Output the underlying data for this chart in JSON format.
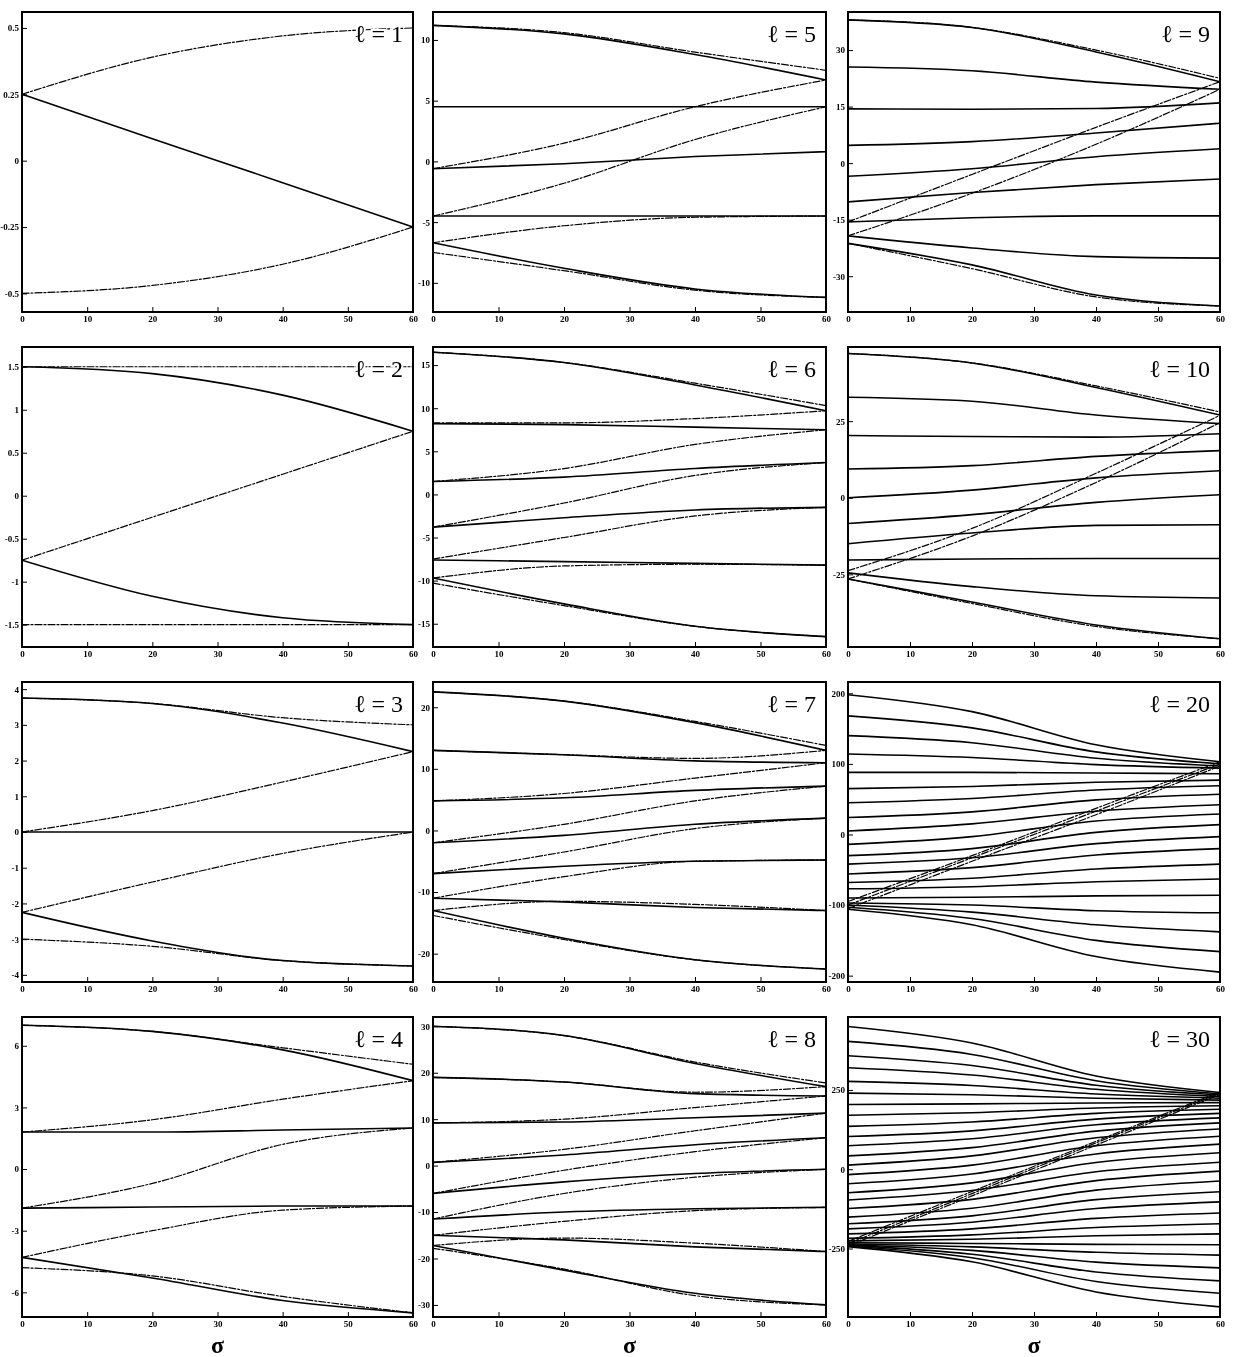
{
  "chart_data": [
    {
      "type": "line",
      "annotations": [
        "ℓ = 1"
      ],
      "x": [
        0,
        20,
        40,
        60
      ],
      "xlim": [
        0,
        60
      ],
      "xticks": [
        0,
        10,
        20,
        30,
        40,
        50,
        60
      ],
      "ylim": [
        -0.57,
        0.56
      ],
      "yticks": [
        -0.5,
        -0.25,
        0,
        0.25,
        0.5
      ],
      "series": [
        {
          "color": "#000000",
          "line_style": "solid",
          "values": [
            0.25,
            0.083,
            -0.083,
            -0.25
          ]
        },
        {
          "color": "#000000",
          "line_style": "dashed",
          "values": [
            0.25,
            0.39,
            0.47,
            0.5
          ]
        },
        {
          "color": "#000000",
          "line_style": "dashed",
          "values": [
            -0.5,
            -0.47,
            -0.39,
            -0.25
          ]
        }
      ]
    },
    {
      "type": "line",
      "annotations": [
        "ℓ = 5"
      ],
      "x": [
        0,
        20,
        40,
        60
      ],
      "xlim": [
        0,
        60
      ],
      "xticks": [
        0,
        10,
        20,
        30,
        40,
        50,
        60
      ],
      "ylim": [
        -12.4,
        12.3
      ],
      "yticks": [
        -10,
        -5,
        0,
        5,
        10
      ],
      "series": [
        {
          "color": "#000000",
          "line_style": "solid",
          "values": [
            11.2,
            10.5,
            8.8,
            6.7
          ]
        },
        {
          "color": "#000000",
          "line_style": "dashed",
          "values": [
            11.2,
            10.6,
            9.0,
            7.5
          ]
        },
        {
          "color": "#000000",
          "line_style": "solid",
          "values": [
            4.5,
            4.5,
            4.5,
            4.5
          ]
        },
        {
          "color": "#000000",
          "line_style": "dashed",
          "values": [
            -0.6,
            1.5,
            4.5,
            6.7
          ]
        },
        {
          "color": "#000000",
          "line_style": "solid",
          "values": [
            -0.6,
            -0.2,
            0.4,
            0.8
          ]
        },
        {
          "color": "#000000",
          "line_style": "dashed",
          "values": [
            -4.5,
            -1.8,
            1.8,
            4.5
          ]
        },
        {
          "color": "#000000",
          "line_style": "solid",
          "values": [
            -4.5,
            -4.5,
            -4.5,
            -4.5
          ]
        },
        {
          "color": "#000000",
          "line_style": "dashed",
          "values": [
            -6.7,
            -5.3,
            -4.6,
            -4.5
          ]
        },
        {
          "color": "#000000",
          "line_style": "dashed",
          "values": [
            -7.5,
            -9.0,
            -10.6,
            -11.2
          ]
        },
        {
          "color": "#000000",
          "line_style": "solid",
          "values": [
            -6.7,
            -8.8,
            -10.5,
            -11.2
          ]
        }
      ]
    },
    {
      "type": "line",
      "annotations": [
        "ℓ = 9"
      ],
      "x": [
        0,
        20,
        40,
        60
      ],
      "xlim": [
        0,
        60
      ],
      "xticks": [
        0,
        10,
        20,
        30,
        40,
        50,
        60
      ],
      "ylim": [
        -39.5,
        40.1
      ],
      "yticks": [
        -30,
        -15,
        0,
        15,
        30
      ],
      "series": [
        {
          "color": "#000000",
          "line_style": "solid",
          "values": [
            38,
            36,
            29.5,
            21.6
          ]
        },
        {
          "color": "#000000",
          "line_style": "dashed",
          "values": [
            38,
            36,
            30,
            22.5
          ]
        },
        {
          "color": "#000000",
          "line_style": "solid",
          "values": [
            25.5,
            24.5,
            21.5,
            19.6
          ]
        },
        {
          "color": "#000000",
          "line_style": "solid",
          "values": [
            14.4,
            14.3,
            14.5,
            16
          ]
        },
        {
          "color": "#000000",
          "line_style": "solid",
          "values": [
            4.7,
            5.7,
            8,
            10.6
          ]
        },
        {
          "color": "#000000",
          "line_style": "solid",
          "values": [
            -3.5,
            -1.5,
            1.7,
            3.8
          ]
        },
        {
          "color": "#000000",
          "line_style": "solid",
          "values": [
            -10.3,
            -7.8,
            -5.7,
            -4.2
          ]
        },
        {
          "color": "#000000",
          "line_style": "solid",
          "values": [
            -15.6,
            -14.5,
            -14,
            -14
          ]
        },
        {
          "color": "#000000",
          "line_style": "dashed",
          "values": [
            -15.6,
            -3,
            9.5,
            21.6
          ]
        },
        {
          "color": "#000000",
          "line_style": "dashed",
          "values": [
            -19.3,
            -8,
            5,
            19.6
          ]
        },
        {
          "color": "#000000",
          "line_style": "solid",
          "values": [
            -19.3,
            -22.5,
            -24.8,
            -25.2
          ]
        },
        {
          "color": "#000000",
          "line_style": "solid",
          "values": [
            -21.3,
            -27,
            -35,
            -37.9
          ]
        },
        {
          "color": "#000000",
          "line_style": "dashed",
          "values": [
            -21.3,
            -28,
            -35.5,
            -37.9
          ]
        }
      ]
    },
    {
      "type": "line",
      "annotations": [
        "ℓ = 2"
      ],
      "x": [
        0,
        20,
        40,
        60
      ],
      "xlim": [
        0,
        60
      ],
      "xticks": [
        0,
        10,
        20,
        30,
        40,
        50,
        60
      ],
      "ylim": [
        -1.76,
        1.73
      ],
      "yticks": [
        -1.5,
        -1,
        -0.5,
        0,
        0.5,
        1,
        1.5
      ],
      "series": [
        {
          "color": "#000000",
          "line_style": "dashed",
          "values": [
            1.5,
            1.5,
            1.5,
            1.5
          ]
        },
        {
          "color": "#000000",
          "line_style": "solid",
          "values": [
            1.5,
            1.42,
            1.17,
            0.75
          ]
        },
        {
          "color": "#000000",
          "line_style": "dashed",
          "values": [
            -0.75,
            -0.25,
            0.25,
            0.75
          ]
        },
        {
          "color": "#000000",
          "line_style": "solid",
          "values": [
            -0.75,
            -1.17,
            -1.42,
            -1.5
          ]
        },
        {
          "color": "#000000",
          "line_style": "dashed",
          "values": [
            -1.5,
            -1.5,
            -1.5,
            -1.5
          ]
        }
      ]
    },
    {
      "type": "line",
      "annotations": [
        "ℓ = 6"
      ],
      "x": [
        0,
        20,
        40,
        60
      ],
      "xlim": [
        0,
        60
      ],
      "xticks": [
        0,
        10,
        20,
        30,
        40,
        50,
        60
      ],
      "ylim": [
        -17.7,
        17.1
      ],
      "yticks": [
        -15,
        -10,
        -5,
        0,
        5,
        10,
        15
      ],
      "series": [
        {
          "color": "#000000",
          "line_style": "solid",
          "values": [
            16.5,
            15.3,
            12.7,
            9.7
          ]
        },
        {
          "color": "#000000",
          "line_style": "dashed",
          "values": [
            16.5,
            15.3,
            12.9,
            10.3
          ]
        },
        {
          "color": "#000000",
          "line_style": "dashed",
          "values": [
            8.3,
            8.3,
            8.8,
            9.7
          ]
        },
        {
          "color": "#000000",
          "line_style": "solid",
          "values": [
            8.2,
            8.1,
            7.8,
            7.5
          ]
        },
        {
          "color": "#000000",
          "line_style": "dashed",
          "values": [
            1.5,
            3.0,
            5.8,
            7.5
          ]
        },
        {
          "color": "#000000",
          "line_style": "solid",
          "values": [
            1.5,
            2.0,
            3.0,
            3.7
          ]
        },
        {
          "color": "#000000",
          "line_style": "dashed",
          "values": [
            -3.8,
            -1.0,
            2.2,
            3.7
          ]
        },
        {
          "color": "#000000",
          "line_style": "solid",
          "values": [
            -3.8,
            -2.7,
            -1.8,
            -1.5
          ]
        },
        {
          "color": "#000000",
          "line_style": "dashed",
          "values": [
            -7.5,
            -5,
            -2.5,
            -1.5
          ]
        },
        {
          "color": "#000000",
          "line_style": "solid",
          "values": [
            -7.6,
            -7.8,
            -8.0,
            -8.2
          ]
        },
        {
          "color": "#000000",
          "line_style": "dashed",
          "values": [
            -9.7,
            -8.3,
            -8.1,
            -8.2
          ]
        },
        {
          "color": "#000000",
          "line_style": "dashed",
          "values": [
            -10.3,
            -12.9,
            -15.3,
            -16.5
          ]
        },
        {
          "color": "#000000",
          "line_style": "solid",
          "values": [
            -9.7,
            -12.7,
            -15.3,
            -16.5
          ]
        }
      ]
    },
    {
      "type": "line",
      "annotations": [
        "ℓ = 10"
      ],
      "x": [
        0,
        20,
        40,
        60
      ],
      "xlim": [
        0,
        60
      ],
      "xticks": [
        0,
        10,
        20,
        30,
        40,
        50,
        60
      ],
      "ylim": [
        -48.7,
        49.2
      ],
      "yticks": [
        -25,
        0,
        25
      ],
      "series": [
        {
          "color": "#000000",
          "line_style": "solid",
          "values": [
            47.1,
            44,
            36,
            27
          ]
        },
        {
          "color": "#000000",
          "line_style": "dashed",
          "values": [
            47.1,
            44,
            36.5,
            28
          ]
        },
        {
          "color": "#000000",
          "line_style": "solid",
          "values": [
            32.8,
            31.5,
            27,
            24.2
          ]
        },
        {
          "color": "#000000",
          "line_style": "solid",
          "values": [
            20.3,
            20,
            19.8,
            20.9
          ]
        },
        {
          "color": "#000000",
          "line_style": "solid",
          "values": [
            9.4,
            10.5,
            13.5,
            15.4
          ]
        },
        {
          "color": "#000000",
          "line_style": "solid",
          "values": [
            0,
            2.5,
            6.5,
            8.8
          ]
        },
        {
          "color": "#000000",
          "line_style": "solid",
          "values": [
            -8.4,
            -5.5,
            -1.5,
            1
          ]
        },
        {
          "color": "#000000",
          "line_style": "solid",
          "values": [
            -15,
            -11.5,
            -9,
            -8.8
          ]
        },
        {
          "color": "#000000",
          "line_style": "solid",
          "values": [
            -20.3,
            -20,
            -19.8,
            -19.8
          ]
        },
        {
          "color": "#000000",
          "line_style": "dashed",
          "values": [
            -23.8,
            -10,
            8,
            26.9
          ]
        },
        {
          "color": "#000000",
          "line_style": "dashed",
          "values": [
            -26.5,
            -12.5,
            5,
            24.5
          ]
        },
        {
          "color": "#000000",
          "line_style": "solid",
          "values": [
            -24.5,
            -29,
            -32,
            -32.7
          ]
        },
        {
          "color": "#000000",
          "line_style": "solid",
          "values": [
            -26.5,
            -34,
            -41.5,
            -46
          ]
        },
        {
          "color": "#000000",
          "line_style": "dashed",
          "values": [
            -26.5,
            -34.5,
            -42,
            -46
          ]
        }
      ]
    },
    {
      "type": "line",
      "annotations": [
        "ℓ = 3"
      ],
      "x": [
        0,
        20,
        40,
        60
      ],
      "xlim": [
        0,
        60
      ],
      "xticks": [
        0,
        10,
        20,
        30,
        40,
        50,
        60
      ],
      "ylim": [
        -4.2,
        4.2
      ],
      "yticks": [
        -4,
        -3,
        -2,
        -1,
        0,
        1,
        2,
        3,
        4
      ],
      "series": [
        {
          "color": "#000000",
          "line_style": "dashed",
          "values": [
            3.75,
            3.6,
            3.2,
            3.0
          ]
        },
        {
          "color": "#000000",
          "line_style": "solid",
          "values": [
            3.75,
            3.6,
            3.05,
            2.25
          ]
        },
        {
          "color": "#000000",
          "line_style": "dashed",
          "values": [
            0,
            0.6,
            1.4,
            2.25
          ]
        },
        {
          "color": "#000000",
          "line_style": "solid",
          "values": [
            0,
            0,
            0,
            0
          ]
        },
        {
          "color": "#000000",
          "line_style": "dashed",
          "values": [
            -2.25,
            -1.4,
            -0.6,
            0
          ]
        },
        {
          "color": "#000000",
          "line_style": "dashed",
          "values": [
            -3,
            -3.2,
            -3.6,
            -3.75
          ]
        },
        {
          "color": "#000000",
          "line_style": "solid",
          "values": [
            -2.25,
            -3.05,
            -3.6,
            -3.75
          ]
        }
      ]
    },
    {
      "type": "line",
      "annotations": [
        "ℓ = 7"
      ],
      "x": [
        0,
        20,
        40,
        60
      ],
      "xlim": [
        0,
        60
      ],
      "xticks": [
        0,
        10,
        20,
        30,
        40,
        50,
        60
      ],
      "ylim": [
        -24.6,
        24.1
      ],
      "yticks": [
        -20,
        -10,
        0,
        10,
        20
      ],
      "series": [
        {
          "color": "#000000",
          "line_style": "solid",
          "values": [
            22.5,
            21,
            17.5,
            13
          ]
        },
        {
          "color": "#000000",
          "line_style": "dashed",
          "values": [
            22.5,
            21,
            17.7,
            13.8
          ]
        },
        {
          "color": "#000000",
          "line_style": "solid",
          "values": [
            13,
            12.3,
            11.3,
            11
          ]
        },
        {
          "color": "#000000",
          "line_style": "dashed",
          "values": [
            13,
            12.3,
            11.7,
            13
          ]
        },
        {
          "color": "#000000",
          "line_style": "solid",
          "values": [
            4.8,
            5.3,
            6.5,
            7.2
          ]
        },
        {
          "color": "#000000",
          "line_style": "dashed",
          "values": [
            4.8,
            6.0,
            8.5,
            11
          ]
        },
        {
          "color": "#000000",
          "line_style": "solid",
          "values": [
            -2,
            -0.8,
            1,
            2
          ]
        },
        {
          "color": "#000000",
          "line_style": "dashed",
          "values": [
            -2,
            1,
            4.8,
            7.2
          ]
        },
        {
          "color": "#000000",
          "line_style": "solid",
          "values": [
            -7,
            -5.8,
            -5,
            -4.8
          ]
        },
        {
          "color": "#000000",
          "line_style": "dashed",
          "values": [
            -7,
            -3.5,
            0.3,
            2
          ]
        },
        {
          "color": "#000000",
          "line_style": "solid",
          "values": [
            -11,
            -11.6,
            -12.5,
            -13
          ]
        },
        {
          "color": "#000000",
          "line_style": "dashed",
          "values": [
            -11,
            -7.5,
            -5,
            -4.8
          ]
        },
        {
          "color": "#000000",
          "line_style": "dashed",
          "values": [
            -13,
            -11.5,
            -12,
            -13
          ]
        },
        {
          "color": "#000000",
          "line_style": "dashed",
          "values": [
            -13.8,
            -17.7,
            -21,
            -22.5
          ]
        },
        {
          "color": "#000000",
          "line_style": "solid",
          "values": [
            -13,
            -17.5,
            -21,
            -22.5
          ]
        }
      ]
    },
    {
      "type": "line",
      "annotations": [
        "ℓ = 20"
      ],
      "x": [
        0,
        20,
        40,
        60
      ],
      "xlim": [
        0,
        60
      ],
      "xticks": [
        0,
        10,
        20,
        30,
        40,
        50,
        60
      ],
      "ylim": [
        -209,
        216
      ],
      "yticks": [
        -200,
        -100,
        0,
        100,
        200
      ],
      "series": [
        {
          "color": "#000000",
          "line_style": "solid",
          "values": [
            198,
            174,
            127,
            103
          ]
        },
        {
          "color": "#000000",
          "line_style": "solid",
          "values": [
            168,
            151,
            117,
            100
          ]
        },
        {
          "color": "#000000",
          "line_style": "solid",
          "values": [
            140,
            130,
            108,
            97
          ]
        },
        {
          "color": "#000000",
          "line_style": "solid",
          "values": [
            114,
            109,
            99,
            94
          ]
        },
        {
          "color": "#000000",
          "line_style": "solid",
          "values": [
            88,
            88,
            87,
            86
          ]
        },
        {
          "color": "#000000",
          "line_style": "solid",
          "values": [
            65,
            68,
            74,
            77
          ]
        },
        {
          "color": "#000000",
          "line_style": "solid",
          "values": [
            45,
            51,
            63,
            69
          ]
        },
        {
          "color": "#000000",
          "line_style": "solid",
          "values": [
            24,
            32,
            49,
            57
          ]
        },
        {
          "color": "#000000",
          "line_style": "solid",
          "values": [
            5,
            15,
            33,
            42
          ]
        },
        {
          "color": "#000000",
          "line_style": "solid",
          "values": [
            -14,
            -3,
            19,
            29
          ]
        },
        {
          "color": "#000000",
          "line_style": "solid",
          "values": [
            -30,
            -20,
            3,
            14
          ]
        },
        {
          "color": "#000000",
          "line_style": "solid",
          "values": [
            -42,
            -33,
            -13,
            -3
          ]
        },
        {
          "color": "#000000",
          "line_style": "solid",
          "values": [
            -56,
            -47,
            -29,
            -20
          ]
        },
        {
          "color": "#000000",
          "line_style": "solid",
          "values": [
            -68,
            -62,
            -49,
            -42
          ]
        },
        {
          "color": "#000000",
          "line_style": "solid",
          "values": [
            -77,
            -74,
            -67,
            -63
          ]
        },
        {
          "color": "#000000",
          "line_style": "solid",
          "values": [
            -90,
            -89,
            -87,
            -86
          ]
        },
        {
          "color": "#000000",
          "line_style": "solid",
          "values": [
            -97,
            -100,
            -108,
            -111
          ]
        },
        {
          "color": "#000000",
          "line_style": "solid",
          "values": [
            -100,
            -110,
            -128,
            -138
          ]
        },
        {
          "color": "#000000",
          "line_style": "solid",
          "values": [
            -103,
            -119,
            -150,
            -166
          ]
        },
        {
          "color": "#000000",
          "line_style": "solid",
          "values": [
            -106,
            -128,
            -173,
            -195
          ]
        },
        {
          "color": "#000000",
          "line_style": "dashed",
          "values": [
            -95,
            -30,
            37,
            103
          ]
        },
        {
          "color": "#000000",
          "line_style": "dashed",
          "values": [
            -100,
            -33,
            33,
            100
          ]
        },
        {
          "color": "#000000",
          "line_style": "dashed",
          "values": [
            -105,
            -38,
            28,
            97
          ]
        }
      ]
    },
    {
      "type": "line",
      "annotations": [
        "ℓ = 4"
      ],
      "xlabel": "σ",
      "x": [
        0,
        20,
        40,
        60
      ],
      "xlim": [
        0,
        60
      ],
      "xticks": [
        0,
        10,
        20,
        30,
        40,
        50,
        60
      ],
      "ylim": [
        -7.2,
        7.4
      ],
      "yticks": [
        -6,
        -3,
        0,
        3,
        6
      ],
      "series": [
        {
          "color": "#000000",
          "line_style": "solid",
          "values": [
            7,
            6.7,
            5.8,
            4.3
          ]
        },
        {
          "color": "#000000",
          "line_style": "dashed",
          "values": [
            7,
            6.7,
            5.9,
            5.1
          ]
        },
        {
          "color": "#000000",
          "line_style": "dashed",
          "values": [
            1.8,
            2.4,
            3.4,
            4.3
          ]
        },
        {
          "color": "#000000",
          "line_style": "solid",
          "values": [
            1.8,
            1.8,
            1.9,
            2.0
          ]
        },
        {
          "color": "#000000",
          "line_style": "dashed",
          "values": [
            -1.9,
            -0.7,
            1.2,
            2.0
          ]
        },
        {
          "color": "#000000",
          "line_style": "solid",
          "values": [
            -1.9,
            -1.85,
            -1.8,
            -1.8
          ]
        },
        {
          "color": "#000000",
          "line_style": "dashed",
          "values": [
            -4.3,
            -3.0,
            -2.0,
            -1.8
          ]
        },
        {
          "color": "#000000",
          "line_style": "dashed",
          "values": [
            -4.8,
            -5.2,
            -6.2,
            -7
          ]
        },
        {
          "color": "#000000",
          "line_style": "solid",
          "values": [
            -4.3,
            -5.3,
            -6.4,
            -7.0
          ]
        }
      ]
    },
    {
      "type": "line",
      "annotations": [
        "ℓ = 8"
      ],
      "xlabel": "σ",
      "x": [
        0,
        20,
        40,
        60
      ],
      "xlim": [
        0,
        60
      ],
      "xticks": [
        0,
        10,
        20,
        30,
        40,
        50,
        60
      ],
      "ylim": [
        -32.6,
        32
      ],
      "yticks": [
        -30,
        -20,
        -10,
        0,
        10,
        20,
        30
      ],
      "series": [
        {
          "color": "#000000",
          "line_style": "solid",
          "values": [
            30,
            28,
            22,
            17
          ]
        },
        {
          "color": "#000000",
          "line_style": "dashed",
          "values": [
            30,
            28,
            22.3,
            17.8
          ]
        },
        {
          "color": "#000000",
          "line_style": "solid",
          "values": [
            19,
            18,
            15.5,
            15
          ]
        },
        {
          "color": "#000000",
          "line_style": "dashed",
          "values": [
            19,
            18,
            15.8,
            17
          ]
        },
        {
          "color": "#000000",
          "line_style": "solid",
          "values": [
            9.2,
            9.4,
            10.3,
            11.3
          ]
        },
        {
          "color": "#000000",
          "line_style": "dashed",
          "values": [
            9.2,
            10,
            12.5,
            15
          ]
        },
        {
          "color": "#000000",
          "line_style": "solid",
          "values": [
            0.7,
            2.3,
            4.5,
            6
          ]
        },
        {
          "color": "#000000",
          "line_style": "dashed",
          "values": [
            0.7,
            3.5,
            7.5,
            11.3
          ]
        },
        {
          "color": "#000000",
          "line_style": "solid",
          "values": [
            -6,
            -3.5,
            -1.7,
            -0.8
          ]
        },
        {
          "color": "#000000",
          "line_style": "dashed",
          "values": [
            -6,
            -1,
            3,
            6
          ]
        },
        {
          "color": "#000000",
          "line_style": "solid",
          "values": [
            -11.5,
            -10,
            -9.3,
            -9
          ]
        },
        {
          "color": "#000000",
          "line_style": "dashed",
          "values": [
            -11.5,
            -6,
            -2.5,
            -0.8
          ]
        },
        {
          "color": "#000000",
          "line_style": "solid",
          "values": [
            -15,
            -16,
            -17.5,
            -18.5
          ]
        },
        {
          "color": "#000000",
          "line_style": "dashed",
          "values": [
            -15,
            -12,
            -9.7,
            -9
          ]
        },
        {
          "color": "#000000",
          "line_style": "dashed",
          "values": [
            -17.2,
            -15.6,
            -16.7,
            -18.5
          ]
        },
        {
          "color": "#000000",
          "line_style": "solid",
          "values": [
            -17.2,
            -22.5,
            -27.5,
            -30
          ]
        },
        {
          "color": "#000000",
          "line_style": "dashed",
          "values": [
            -17.8,
            -22.3,
            -28,
            -30
          ]
        }
      ]
    },
    {
      "type": "line",
      "annotations": [
        "ℓ = 30"
      ],
      "xlabel": "σ",
      "x": [
        0,
        20,
        40,
        60
      ],
      "xlim": [
        0,
        60
      ],
      "xticks": [
        0,
        10,
        20,
        30,
        40,
        50,
        60
      ],
      "ylim": [
        -466,
        480
      ],
      "yticks": [
        -250,
        0,
        250
      ],
      "series": [
        {
          "color": "#000000",
          "line_style": "solid",
          "values": [
            450,
            398,
            294,
            242
          ]
        },
        {
          "color": "#000000",
          "line_style": "solid",
          "values": [
            403,
            362,
            279,
            238
          ]
        },
        {
          "color": "#000000",
          "line_style": "solid",
          "values": [
            358,
            327,
            265,
            234
          ]
        },
        {
          "color": "#000000",
          "line_style": "solid",
          "values": [
            320,
            297,
            252,
            229
          ]
        },
        {
          "color": "#000000",
          "line_style": "solid",
          "values": [
            277,
            264,
            237,
            224
          ]
        },
        {
          "color": "#000000",
          "line_style": "solid",
          "values": [
            240,
            235,
            224,
            218
          ]
        },
        {
          "color": "#000000",
          "line_style": "solid",
          "values": [
            204,
            206,
            209,
            210
          ]
        },
        {
          "color": "#000000",
          "line_style": "solid",
          "values": [
            170,
            178,
            193,
            200
          ]
        },
        {
          "color": "#000000",
          "line_style": "solid",
          "values": [
            135,
            149,
            176,
            189
          ]
        },
        {
          "color": "#000000",
          "line_style": "solid",
          "values": [
            103,
            121,
            158,
            176
          ]
        },
        {
          "color": "#000000",
          "line_style": "solid",
          "values": [
            74,
            96,
            140,
            162
          ]
        },
        {
          "color": "#000000",
          "line_style": "solid",
          "values": [
            42,
            68,
            120,
            146
          ]
        },
        {
          "color": "#000000",
          "line_style": "solid",
          "values": [
            13,
            42,
            99,
            127
          ]
        },
        {
          "color": "#000000",
          "line_style": "solid",
          "values": [
            -17,
            13,
            74,
            104
          ]
        },
        {
          "color": "#000000",
          "line_style": "solid",
          "values": [
            -46,
            -15,
            48,
            79
          ]
        },
        {
          "color": "#000000",
          "line_style": "solid",
          "values": [
            -74,
            -43,
            21,
            52
          ]
        },
        {
          "color": "#000000",
          "line_style": "solid",
          "values": [
            -97,
            -67,
            -8,
            22
          ]
        },
        {
          "color": "#000000",
          "line_style": "solid",
          "values": [
            -124,
            -95,
            -36,
            -6
          ]
        },
        {
          "color": "#000000",
          "line_style": "solid",
          "values": [
            -151,
            -123,
            -66,
            -37
          ]
        },
        {
          "color": "#000000",
          "line_style": "solid",
          "values": [
            -172,
            -147,
            -96,
            -71
          ]
        },
        {
          "color": "#000000",
          "line_style": "solid",
          "values": [
            -188,
            -167,
            -124,
            -103
          ]
        },
        {
          "color": "#000000",
          "line_style": "solid",
          "values": [
            -204,
            -188,
            -155,
            -138
          ]
        },
        {
          "color": "#000000",
          "line_style": "solid",
          "values": [
            -218,
            -207,
            -184,
            -172
          ]
        },
        {
          "color": "#000000",
          "line_style": "solid",
          "values": [
            -226,
            -221,
            -210,
            -204
          ]
        },
        {
          "color": "#000000",
          "line_style": "solid",
          "values": [
            -232,
            -234,
            -237,
            -238
          ]
        },
        {
          "color": "#000000",
          "line_style": "solid",
          "values": [
            -236,
            -245,
            -262,
            -271
          ]
        },
        {
          "color": "#000000",
          "line_style": "solid",
          "values": [
            -238,
            -256,
            -293,
            -311
          ]
        },
        {
          "color": "#000000",
          "line_style": "solid",
          "values": [
            -240,
            -268,
            -324,
            -352
          ]
        },
        {
          "color": "#000000",
          "line_style": "solid",
          "values": [
            -242,
            -279,
            -354,
            -391
          ]
        },
        {
          "color": "#000000",
          "line_style": "solid",
          "values": [
            -244,
            -292,
            -387,
            -434
          ]
        },
        {
          "color": "#000000",
          "line_style": "dashed",
          "values": [
            -228,
            -70,
            88,
            244
          ]
        },
        {
          "color": "#000000",
          "line_style": "dashed",
          "values": [
            -235,
            -77,
            83,
            240
          ]
        },
        {
          "color": "#000000",
          "line_style": "dashed",
          "values": [
            -242,
            -84,
            76,
            236
          ]
        }
      ]
    }
  ]
}
